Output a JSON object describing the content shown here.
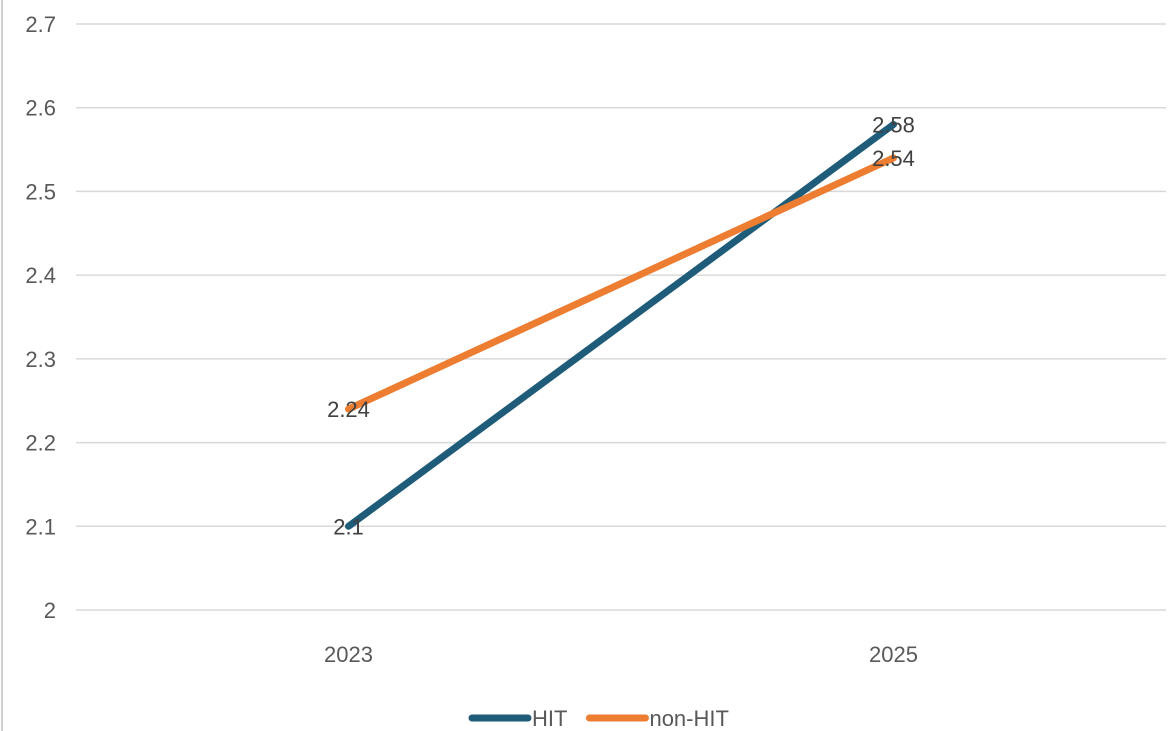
{
  "chart_data": {
    "type": "line",
    "title": "",
    "xlabel": "",
    "ylabel": "",
    "x": [
      "2023",
      "2025"
    ],
    "ylim": [
      2,
      2.7
    ],
    "yticks": [
      "2",
      "2.1",
      "2.2",
      "2.3",
      "2.4",
      "2.5",
      "2.6",
      "2.7"
    ],
    "grid": true,
    "legend_position": "bottom",
    "series": [
      {
        "name": "HIT",
        "color": "#1f5c7a",
        "values": [
          2.1,
          2.58
        ],
        "labels": [
          "2.1",
          "2.58"
        ]
      },
      {
        "name": "non-HIT",
        "color": "#ed7d31",
        "values": [
          2.24,
          2.54
        ],
        "labels": [
          "2.24",
          "2.54"
        ]
      }
    ]
  }
}
